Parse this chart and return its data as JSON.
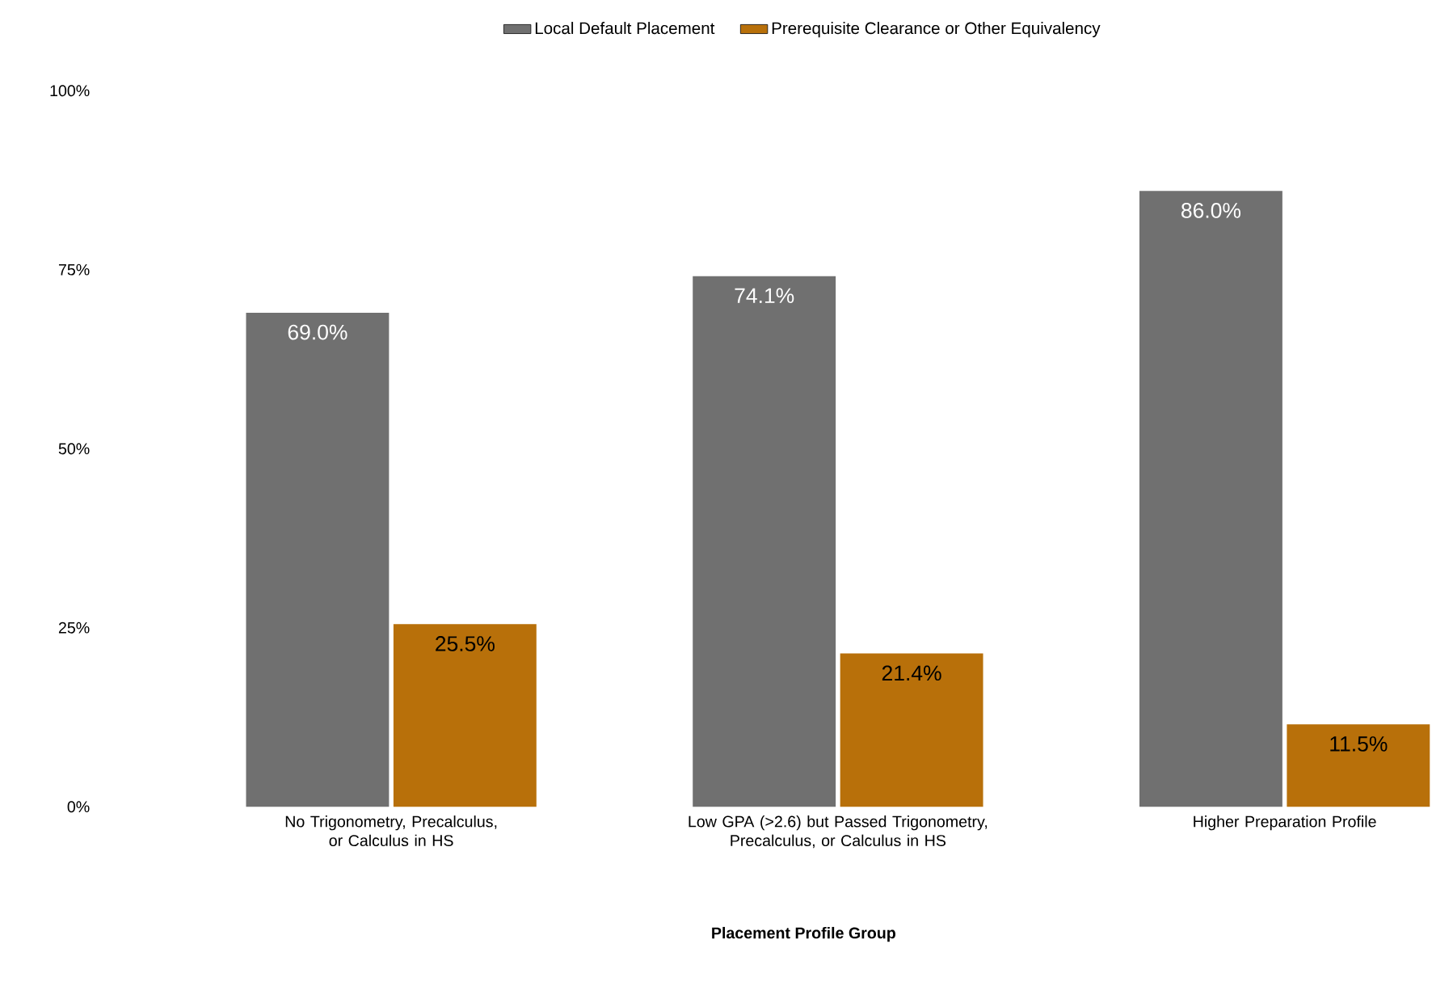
{
  "chart_data": {
    "type": "bar",
    "xlabel": "Placement Profile Group",
    "categories": [
      "No Trigonometry, Precalculus, or Calculus in HS",
      "Low GPA (>2.6) but Passed Trigonometry, Precalculus, or Calculus in HS",
      "Higher Preparation Profile"
    ],
    "series": [
      {
        "name": "Local Default Placement",
        "color": "#707070",
        "values": [
          69.0,
          74.1,
          86.0
        ],
        "value_labels": [
          "69.0%",
          "74.1%",
          "86.0%"
        ]
      },
      {
        "name": "Prerequisite Clearance or Other Equivalency",
        "color": "#b8700a",
        "values": [
          25.5,
          21.4,
          11.5
        ],
        "value_labels": [
          "25.5%",
          "21.4%",
          "11.5%"
        ]
      }
    ],
    "ylim": [
      0,
      100
    ],
    "yticks": [
      {
        "value": 0,
        "label": "0%"
      },
      {
        "value": 25,
        "label": "25%"
      },
      {
        "value": 50,
        "label": "50%"
      },
      {
        "value": 75,
        "label": "75%"
      },
      {
        "value": 100,
        "label": "100%"
      }
    ],
    "grid": false,
    "legend": "top"
  }
}
